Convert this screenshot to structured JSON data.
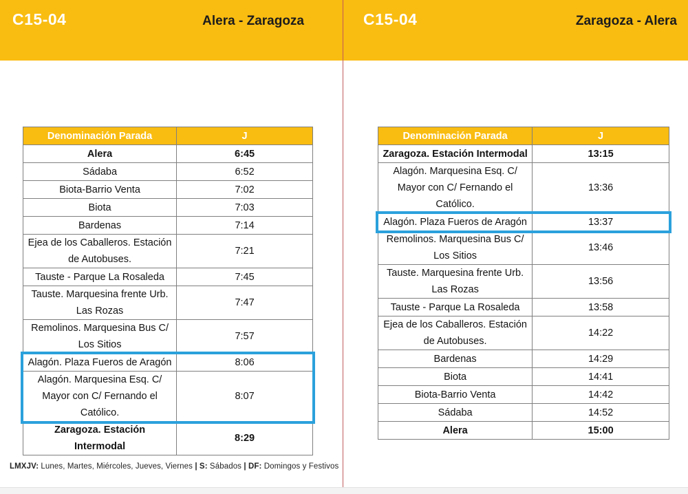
{
  "colors": {
    "brand_yellow": "#F9BC11",
    "highlight_blue": "#2BA1DC",
    "divider_red": "#C25B5B",
    "table_border_gray": "#7F7F7F"
  },
  "panels": [
    {
      "code": "C15-04",
      "route": "Alera - Zaragoza",
      "table": {
        "headers": [
          "Denominación Parada",
          "J"
        ],
        "rows": [
          {
            "stop": "Alera",
            "time": "6:45",
            "bold": true,
            "highlight": false
          },
          {
            "stop": "Sádaba",
            "time": "6:52",
            "bold": false,
            "highlight": false
          },
          {
            "stop": "Biota-Barrio Venta",
            "time": "7:02",
            "bold": false,
            "highlight": false
          },
          {
            "stop": "Biota",
            "time": "7:03",
            "bold": false,
            "highlight": false
          },
          {
            "stop": "Bardenas",
            "time": "7:14",
            "bold": false,
            "highlight": false
          },
          {
            "stop": "Ejea de los Caballeros. Estación de Autobuses.",
            "time": "7:21",
            "bold": false,
            "highlight": false
          },
          {
            "stop": "Tauste - Parque La Rosaleda",
            "time": "7:45",
            "bold": false,
            "highlight": false
          },
          {
            "stop": "Tauste. Marquesina frente Urb. Las Rozas",
            "time": "7:47",
            "bold": false,
            "highlight": false
          },
          {
            "stop": "Remolinos. Marquesina Bus C/ Los Sitios",
            "time": "7:57",
            "bold": false,
            "highlight": false
          },
          {
            "stop": "Alagón. Plaza Fueros de Aragón",
            "time": "8:06",
            "bold": false,
            "highlight": true
          },
          {
            "stop": "Alagón. Marquesina Esq. C/ Mayor con C/ Fernando el Católico.",
            "time": "8:07",
            "bold": false,
            "highlight": true
          },
          {
            "stop": "Zaragoza. Estación Intermodal",
            "time": "8:29",
            "bold": true,
            "highlight": false
          }
        ]
      }
    },
    {
      "code": "C15-04",
      "route": "Zaragoza - Alera",
      "table": {
        "headers": [
          "Denominación Parada",
          "J"
        ],
        "rows": [
          {
            "stop": "Zaragoza. Estación Intermodal",
            "time": "13:15",
            "bold": true,
            "highlight": false
          },
          {
            "stop": "Alagón. Marquesina Esq. C/ Mayor con C/ Fernando el Católico.",
            "time": "13:36",
            "bold": false,
            "highlight": false
          },
          {
            "stop": "Alagón. Plaza Fueros de Aragón",
            "time": "13:37",
            "bold": false,
            "highlight": true
          },
          {
            "stop": "Remolinos. Marquesina Bus C/ Los Sitios",
            "time": "13:46",
            "bold": false,
            "highlight": false
          },
          {
            "stop": "Tauste. Marquesina frente Urb. Las Rozas",
            "time": "13:56",
            "bold": false,
            "highlight": false
          },
          {
            "stop": "Tauste - Parque La Rosaleda",
            "time": "13:58",
            "bold": false,
            "highlight": false
          },
          {
            "stop": "Ejea de los Caballeros. Estación de Autobuses.",
            "time": "14:22",
            "bold": false,
            "highlight": false
          },
          {
            "stop": "Bardenas",
            "time": "14:29",
            "bold": false,
            "highlight": false
          },
          {
            "stop": "Biota",
            "time": "14:41",
            "bold": false,
            "highlight": false
          },
          {
            "stop": "Biota-Barrio Venta",
            "time": "14:42",
            "bold": false,
            "highlight": false
          },
          {
            "stop": "Sádaba",
            "time": "14:52",
            "bold": false,
            "highlight": false
          },
          {
            "stop": "Alera",
            "time": "15:00",
            "bold": true,
            "highlight": false
          }
        ]
      }
    }
  ],
  "legend": {
    "segments": [
      {
        "text": "LMXJV:",
        "bold": true
      },
      {
        "text": " Lunes, Martes, Miércoles, Jueves, Viernes ",
        "bold": false
      },
      {
        "text": "| S:",
        "bold": true
      },
      {
        "text": " Sábados ",
        "bold": false
      },
      {
        "text": "| DF:",
        "bold": true
      },
      {
        "text": " Domingos y Festivos",
        "bold": false
      }
    ]
  }
}
